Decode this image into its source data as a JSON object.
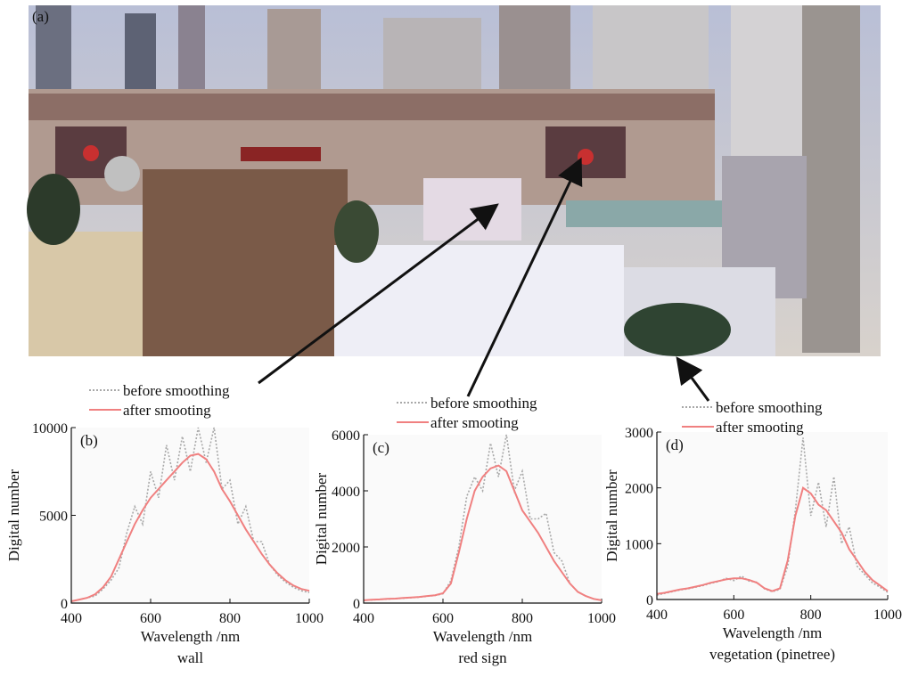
{
  "photo": {
    "label": "(a)"
  },
  "chart_data": [
    {
      "type": "line",
      "panel": "(b)",
      "xlabel": "Wavelength /nm",
      "caption": "wall",
      "ylabel": "Digital number",
      "x": [
        400,
        420,
        440,
        460,
        480,
        500,
        520,
        540,
        560,
        580,
        600,
        620,
        640,
        660,
        680,
        700,
        720,
        740,
        760,
        780,
        800,
        820,
        840,
        860,
        880,
        900,
        920,
        940,
        960,
        980,
        1000
      ],
      "xlim": [
        400,
        1000
      ],
      "xticks": [
        400,
        600,
        800,
        1000
      ],
      "ylim": [
        0,
        10000
      ],
      "yticks": [
        0,
        5000,
        10000
      ],
      "series": [
        {
          "name": "before smoothing",
          "color": "#a8a8a8",
          "values": [
            100,
            200,
            300,
            400,
            800,
            1300,
            2000,
            4000,
            5500,
            4500,
            7500,
            6000,
            9000,
            7000,
            9500,
            7500,
            10000,
            8000,
            10000,
            6500,
            7000,
            4500,
            5500,
            3500,
            3500,
            2200,
            1600,
            1200,
            900,
            700,
            600
          ]
        },
        {
          "name": "after smooting",
          "color": "#f08080",
          "values": [
            100,
            200,
            300,
            500,
            900,
            1500,
            2500,
            3500,
            4500,
            5300,
            6000,
            6500,
            7000,
            7500,
            8000,
            8400,
            8500,
            8200,
            7500,
            6500,
            5800,
            5000,
            4200,
            3500,
            2800,
            2200,
            1700,
            1300,
            1000,
            800,
            700
          ]
        }
      ]
    },
    {
      "type": "line",
      "panel": "(c)",
      "xlabel": "Wavelength /nm",
      "caption": "red sign",
      "ylabel": "Digital number",
      "x": [
        400,
        420,
        440,
        460,
        480,
        500,
        520,
        540,
        560,
        580,
        600,
        620,
        640,
        660,
        680,
        700,
        720,
        740,
        760,
        780,
        800,
        820,
        840,
        860,
        880,
        900,
        920,
        940,
        960,
        980,
        1000
      ],
      "xlim": [
        400,
        1000
      ],
      "xticks": [
        400,
        600,
        800,
        1000
      ],
      "ylim": [
        0,
        6000
      ],
      "yticks": [
        0,
        2000,
        4000,
        6000
      ],
      "series": [
        {
          "name": "before smoothing",
          "color": "#a8a8a8",
          "values": [
            100,
            110,
            130,
            140,
            160,
            170,
            190,
            210,
            240,
            270,
            330,
            800,
            2000,
            3800,
            4500,
            4000,
            5700,
            4500,
            6000,
            4000,
            4700,
            3000,
            3000,
            3200,
            1800,
            1500,
            700,
            400,
            250,
            150,
            100
          ]
        },
        {
          "name": "after smooting",
          "color": "#f08080",
          "values": [
            100,
            120,
            130,
            150,
            160,
            180,
            200,
            220,
            250,
            280,
            350,
            700,
            1800,
            3000,
            4000,
            4500,
            4800,
            4900,
            4700,
            4000,
            3300,
            2900,
            2500,
            2000,
            1500,
            1100,
            700,
            400,
            250,
            150,
            100
          ]
        }
      ]
    },
    {
      "type": "line",
      "panel": "(d)",
      "xlabel": "Wavelength /nm",
      "caption": "vegetation (pinetree)",
      "ylabel": "Digital number",
      "x": [
        400,
        420,
        440,
        460,
        480,
        500,
        520,
        540,
        560,
        580,
        600,
        620,
        640,
        660,
        680,
        700,
        720,
        740,
        760,
        780,
        800,
        820,
        840,
        860,
        880,
        900,
        920,
        940,
        960,
        980,
        1000
      ],
      "xlim": [
        400,
        1000
      ],
      "xticks": [
        400,
        600,
        800,
        1000
      ],
      "ylim": [
        0,
        3000
      ],
      "yticks": [
        0,
        1000,
        2000,
        3000
      ],
      "series": [
        {
          "name": "before smoothing",
          "color": "#a8a8a8",
          "values": [
            80,
            110,
            140,
            170,
            190,
            220,
            250,
            290,
            320,
            380,
            340,
            420,
            330,
            310,
            190,
            140,
            180,
            600,
            1600,
            2900,
            1500,
            2100,
            1300,
            2200,
            1000,
            1300,
            600,
            450,
            300,
            220,
            130
          ]
        },
        {
          "name": "after smooting",
          "color": "#f08080",
          "values": [
            100,
            120,
            150,
            180,
            200,
            230,
            260,
            300,
            330,
            360,
            380,
            380,
            350,
            300,
            200,
            150,
            200,
            700,
            1500,
            2000,
            1900,
            1700,
            1600,
            1400,
            1200,
            900,
            700,
            500,
            350,
            250,
            150
          ]
        }
      ]
    }
  ]
}
